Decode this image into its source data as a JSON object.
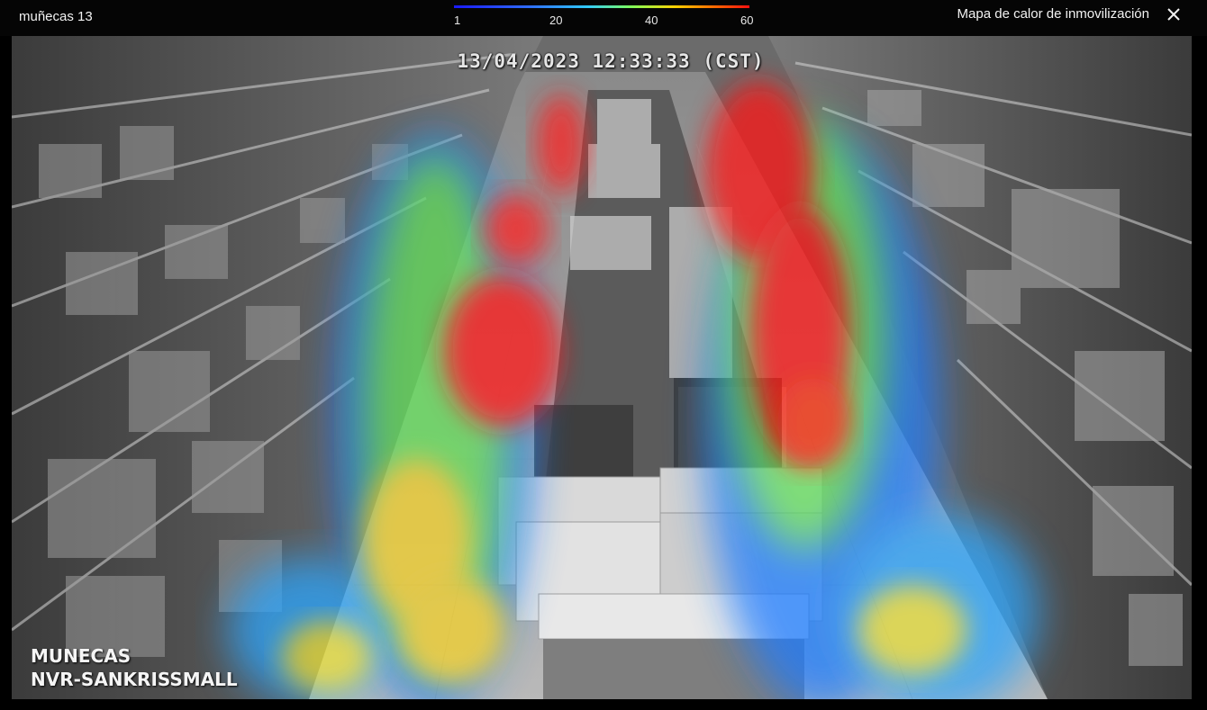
{
  "header": {
    "camera_name": "muñecas 13",
    "panel_title": "Mapa de calor de inmovilización",
    "close_icon": "close-icon"
  },
  "legend": {
    "ticks": [
      "1",
      "20",
      "40",
      "60"
    ],
    "colors": [
      "#1a1aff",
      "#31c9ff",
      "#7fff5a",
      "#ffd000",
      "#ff1010"
    ]
  },
  "video": {
    "timestamp": "13/04/2023 12:33:33 (CST)",
    "channel_lines": [
      "MUNECAS",
      "NVR-SANKRISSMALL"
    ]
  }
}
